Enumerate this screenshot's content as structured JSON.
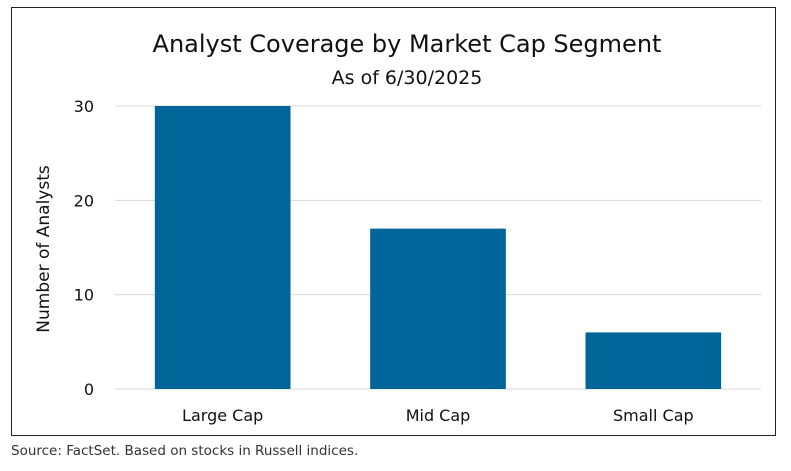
{
  "chart_data": {
    "type": "bar",
    "title": "Analyst Coverage by Market Cap Segment",
    "subtitle": "As of 6/30/2025",
    "xlabel": "",
    "ylabel": "Number  of Analysts",
    "categories": [
      "Large Cap",
      "Mid Cap",
      "Small Cap"
    ],
    "values": [
      30,
      17,
      6
    ],
    "ylim": [
      0,
      30
    ],
    "yticks": [
      "0",
      "10",
      "20",
      "30"
    ],
    "grid": true,
    "legend": "none",
    "bar_color": "#006699",
    "gridline_color": "#d9d9d9"
  },
  "footer": {
    "source": "Source: FactSet. Based on stocks in Russell indices."
  }
}
